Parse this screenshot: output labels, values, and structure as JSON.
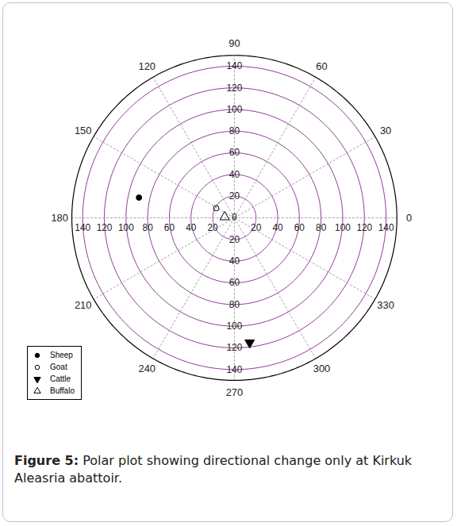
{
  "chart_data": {
    "type": "polar",
    "caption_label": "Figure 5:",
    "caption": "Polar plot showing directional change only at Kirkuk Aleasria abattoir.",
    "rlim": [
      0,
      150
    ],
    "rticks": [
      0,
      20,
      40,
      60,
      80,
      100,
      120,
      140
    ],
    "angle_ticks": [
      0,
      30,
      60,
      90,
      120,
      150,
      180,
      210,
      240,
      270,
      300,
      330
    ],
    "legend": "bottom-left",
    "grid": true,
    "series": [
      {
        "name": "Sheep",
        "marker": "circle",
        "color": "#000000",
        "angle": [
          168
        ],
        "r": [
          90
        ]
      },
      {
        "name": "Goat",
        "marker": "circle-open",
        "color": "#000000",
        "angle": [
          152
        ],
        "r": [
          19
        ]
      },
      {
        "name": "Cattle",
        "marker": "triangle-down",
        "color": "#000000",
        "angle": [
          277
        ],
        "r": [
          116
        ]
      },
      {
        "name": "Buffalo",
        "marker": "triangle-open",
        "color": "#000000",
        "angle": [
          175
        ],
        "r": [
          9
        ]
      }
    ]
  }
}
